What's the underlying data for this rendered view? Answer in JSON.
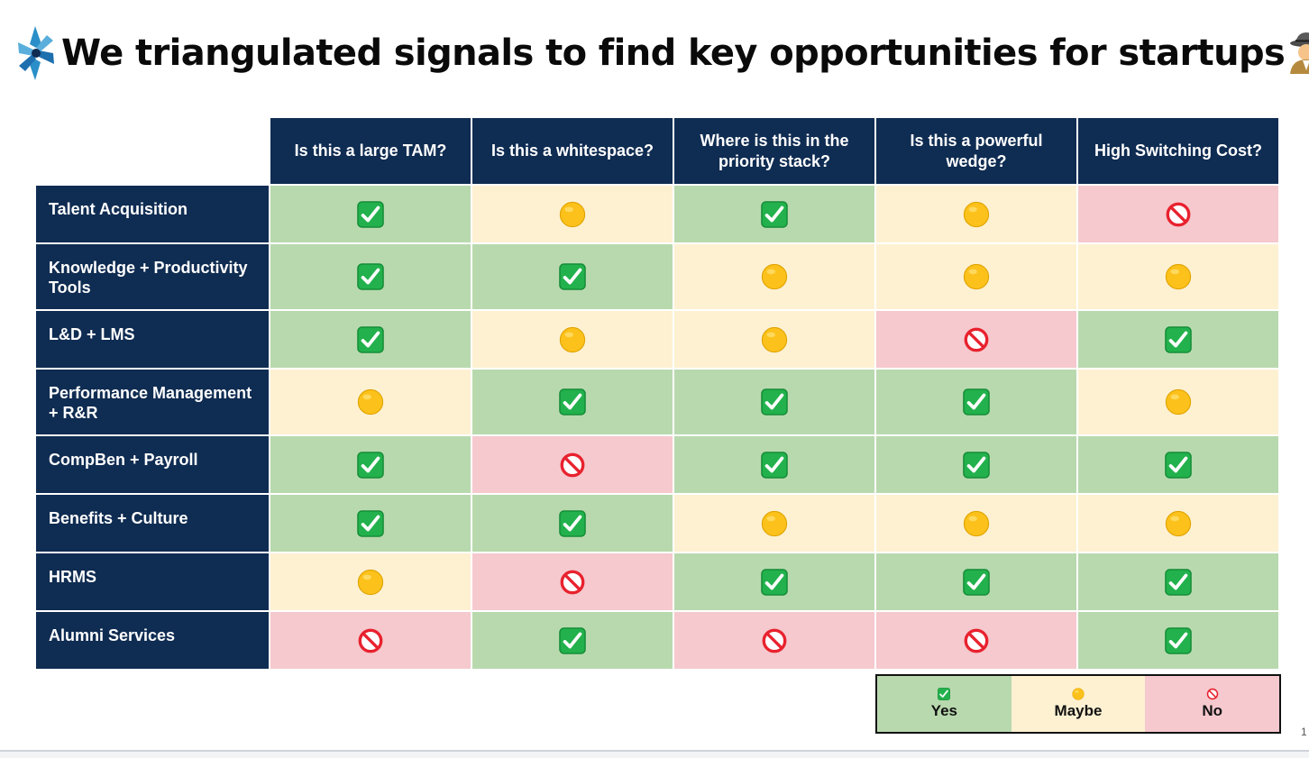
{
  "title": "We triangulated signals to find key opportunities for startups",
  "columns": [
    "Is this a large TAM?",
    "Is this a whitespace?",
    "Where is this in the priority stack?",
    "Is this a powerful wedge?",
    "High Switching Cost?"
  ],
  "rows": [
    {
      "label": "Talent Acquisition",
      "values": [
        "yes",
        "maybe",
        "yes",
        "maybe",
        "no"
      ]
    },
    {
      "label": "Knowledge + Productivity Tools",
      "values": [
        "yes",
        "yes",
        "maybe",
        "maybe",
        "maybe"
      ]
    },
    {
      "label": "L&D + LMS",
      "values": [
        "yes",
        "maybe",
        "maybe",
        "no",
        "yes"
      ]
    },
    {
      "label": "Performance Management + R&R",
      "values": [
        "maybe",
        "yes",
        "yes",
        "yes",
        "maybe"
      ]
    },
    {
      "label": "CompBen + Payroll",
      "values": [
        "yes",
        "no",
        "yes",
        "yes",
        "yes"
      ]
    },
    {
      "label": "Benefits + Culture",
      "values": [
        "yes",
        "yes",
        "maybe",
        "maybe",
        "maybe"
      ]
    },
    {
      "label": "HRMS",
      "values": [
        "maybe",
        "no",
        "yes",
        "yes",
        "yes"
      ]
    },
    {
      "label": "Alumni Services",
      "values": [
        "no",
        "yes",
        "no",
        "no",
        "yes"
      ]
    }
  ],
  "legend": [
    {
      "key": "yes",
      "label": "Yes",
      "icon": "check-mark-button-icon",
      "color": "#b8d9ae"
    },
    {
      "key": "maybe",
      "label": "Maybe",
      "icon": "yellow-circle-icon",
      "color": "#fdf1d2"
    },
    {
      "key": "no",
      "label": "No",
      "icon": "prohibited-icon",
      "color": "#f5c9ce"
    }
  ],
  "colors": {
    "header_navy": "#0f2c52",
    "yes": "#b8d9ae",
    "maybe": "#fdf1d2",
    "no": "#f5c9ce"
  },
  "page_number": "1"
}
